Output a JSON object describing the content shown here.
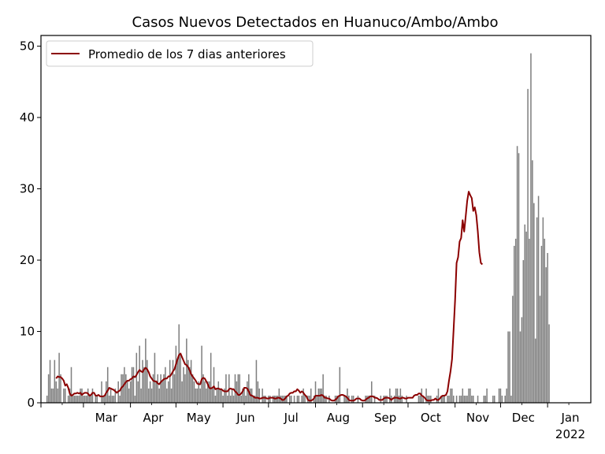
{
  "chart_data": {
    "type": "bar",
    "title": "Casos Nuevos Detectados en Huanuco/Ambo/Ambo",
    "xlabel": "",
    "ylabel": "",
    "ylim": [
      0,
      51.5
    ],
    "yticks": [
      0,
      10,
      20,
      30,
      40,
      50
    ],
    "xticks": [
      {
        "label": "Mar",
        "date": "2021-03-01"
      },
      {
        "label": "Apr",
        "date": "2021-04-01"
      },
      {
        "label": "May",
        "date": "2021-05-01"
      },
      {
        "label": "Jun",
        "date": "2021-06-01"
      },
      {
        "label": "Jul",
        "date": "2021-07-01"
      },
      {
        "label": "Aug",
        "date": "2021-08-01"
      },
      {
        "label": "Sep",
        "date": "2021-09-01"
      },
      {
        "label": "Oct",
        "date": "2021-10-01"
      },
      {
        "label": "Nov",
        "date": "2021-11-01"
      },
      {
        "label": "Dec",
        "date": "2021-12-01"
      },
      {
        "label": "Jan",
        "date": "2022-01-01",
        "sublabel": "2022"
      }
    ],
    "grid": false,
    "legend": {
      "placement": "top-left",
      "entries": [
        "Promedio de los 7 dias anteriores"
      ]
    },
    "bar_color": "#808080",
    "line_color": "#8b0000",
    "series": [
      {
        "kind": "bar",
        "start_date": "2021-02-05",
        "values": [
          1,
          4,
          6,
          2,
          2,
          6,
          3,
          2,
          7,
          4,
          0,
          2,
          2,
          0,
          1,
          2,
          5,
          1,
          1,
          1,
          1,
          1,
          2,
          2,
          1,
          1,
          1,
          2,
          1,
          1,
          2,
          0,
          1,
          1,
          0,
          0,
          3,
          1,
          1,
          3,
          5,
          1,
          2,
          1,
          1,
          2,
          0,
          3,
          1,
          4,
          4,
          5,
          4,
          3,
          2,
          3,
          5,
          5,
          1,
          7,
          3,
          8,
          2,
          6,
          5,
          9,
          6,
          2,
          3,
          2,
          4,
          7,
          3,
          4,
          2,
          4,
          3,
          4,
          5,
          2,
          3,
          6,
          2,
          6,
          4,
          8,
          6,
          11,
          7,
          3,
          5,
          4,
          9,
          6,
          5,
          6,
          4,
          3,
          2,
          2,
          3,
          2,
          8,
          4,
          3,
          2,
          3,
          3,
          7,
          2,
          5,
          1,
          2,
          3,
          2,
          2,
          1,
          2,
          4,
          1,
          4,
          1,
          2,
          1,
          4,
          3,
          4,
          4,
          1,
          2,
          2,
          1,
          3,
          4,
          2,
          2,
          1,
          1,
          6,
          3,
          2,
          0,
          2,
          1,
          1,
          0,
          1,
          1,
          0,
          1,
          1,
          1,
          1,
          2,
          1,
          1,
          1,
          1,
          1,
          0,
          1,
          1,
          0,
          1,
          0,
          1,
          1,
          0,
          1,
          2,
          1,
          0,
          1,
          1,
          2,
          0,
          1,
          3,
          1,
          2,
          2,
          2,
          4,
          1,
          1,
          0,
          1,
          0,
          0,
          0,
          1,
          1,
          1,
          5,
          0,
          0,
          1,
          1,
          2,
          1,
          0,
          1,
          1,
          0,
          0,
          1,
          0,
          0,
          0,
          0,
          1,
          1,
          1,
          1,
          3,
          0,
          1,
          0,
          0,
          0,
          1,
          0,
          1,
          1,
          1,
          0,
          2,
          1,
          0,
          1,
          2,
          2,
          1,
          2,
          1,
          0,
          0,
          1,
          0,
          0,
          0,
          0,
          0,
          0,
          0,
          1,
          1,
          2,
          1,
          0,
          2,
          1,
          1,
          1,
          0,
          0,
          0,
          1,
          2,
          0,
          1,
          1,
          1,
          0,
          1,
          1,
          2,
          2,
          1,
          0,
          1,
          0,
          1,
          1,
          2,
          1,
          1,
          1,
          2,
          2,
          1,
          1,
          0,
          0,
          1,
          0,
          0,
          0,
          1,
          1,
          2,
          0,
          0,
          0,
          1,
          1,
          0,
          0,
          2,
          2,
          1,
          0,
          1,
          2,
          10,
          10,
          1,
          15,
          22,
          23,
          36,
          35,
          10,
          12,
          20,
          25,
          24,
          44,
          23,
          49,
          34,
          28,
          9,
          26,
          29,
          15,
          22,
          26,
          23,
          19,
          21,
          11
        ]
      },
      {
        "kind": "line",
        "name": "Promedio de los 7 dias anteriores",
        "start_date": "2021-02-11",
        "values": [
          3.4,
          3.7,
          3.6,
          3.6,
          3.4,
          3.1,
          2.4,
          2.6,
          2.1,
          1.3,
          1.0,
          1.1,
          1.3,
          1.3,
          1.4,
          1.3,
          1.4,
          1.1,
          1.3,
          1.4,
          1.4,
          1.3,
          1.0,
          1.1,
          1.4,
          1.4,
          1.0,
          1.0,
          1.1,
          0.9,
          0.9,
          0.9,
          1.0,
          1.4,
          1.7,
          2.1,
          2.0,
          1.9,
          1.8,
          1.6,
          1.4,
          1.6,
          1.7,
          2.1,
          2.3,
          2.6,
          2.9,
          3.1,
          3.1,
          3.3,
          3.4,
          3.7,
          3.6,
          3.9,
          4.3,
          4.6,
          4.4,
          4.3,
          4.7,
          4.9,
          4.7,
          4.3,
          3.7,
          3.4,
          3.1,
          3.0,
          3.0,
          2.7,
          2.6,
          2.9,
          3.1,
          3.3,
          3.4,
          3.4,
          3.7,
          3.7,
          4.0,
          4.4,
          4.7,
          5.4,
          6.1,
          6.7,
          6.9,
          6.4,
          5.9,
          5.4,
          5.3,
          5.0,
          4.6,
          4.0,
          3.7,
          3.4,
          3.1,
          2.7,
          2.6,
          2.6,
          3.3,
          3.5,
          3.4,
          3.0,
          2.6,
          2.1,
          2.0,
          2.1,
          2.3,
          1.9,
          2.0,
          2.0,
          1.9,
          1.9,
          1.7,
          1.6,
          1.6,
          1.6,
          1.9,
          2.0,
          1.9,
          1.9,
          1.6,
          1.4,
          1.1,
          1.1,
          1.3,
          1.6,
          2.1,
          2.1,
          2.0,
          1.6,
          1.1,
          1.0,
          0.9,
          0.7,
          0.7,
          0.7,
          0.6,
          0.6,
          0.7,
          0.7,
          0.7,
          0.6,
          0.6,
          0.7,
          0.7,
          0.7,
          0.6,
          0.6,
          0.7,
          0.7,
          0.6,
          0.4,
          0.4,
          0.6,
          0.9,
          1.0,
          1.3,
          1.4,
          1.4,
          1.6,
          1.6,
          1.9,
          1.7,
          1.4,
          1.6,
          1.4,
          1.1,
          0.9,
          0.4,
          0.3,
          0.3,
          0.4,
          0.6,
          1.0,
          1.0,
          1.0,
          1.0,
          1.1,
          1.0,
          0.7,
          0.7,
          0.6,
          0.6,
          0.4,
          0.3,
          0.3,
          0.4,
          0.6,
          0.9,
          1.0,
          1.1,
          1.1,
          1.0,
          0.9,
          0.7,
          0.4,
          0.3,
          0.3,
          0.3,
          0.4,
          0.6,
          0.6,
          0.6,
          0.4,
          0.3,
          0.3,
          0.4,
          0.6,
          0.7,
          0.9,
          0.9,
          0.9,
          0.7,
          0.7,
          0.6,
          0.4,
          0.4,
          0.4,
          0.6,
          0.7,
          0.7,
          0.7,
          0.6,
          0.4,
          0.6,
          0.7,
          0.7,
          0.7,
          0.6,
          0.6,
          0.7,
          0.7,
          0.6,
          0.6,
          0.7,
          0.7,
          0.7,
          0.7,
          1.0,
          1.1,
          1.1,
          1.3,
          1.3,
          1.0,
          0.9,
          0.7,
          0.4,
          0.3,
          0.3,
          0.3,
          0.4,
          0.4,
          0.6,
          0.4,
          0.4,
          0.6,
          0.9,
          1.0,
          1.0,
          1.1,
          1.6,
          3.1,
          4.4,
          6.1,
          10.1,
          14.3,
          19.6,
          20.4,
          22.6,
          23.1,
          25.6,
          24.0,
          26.1,
          28.3,
          29.6,
          29.1,
          28.7,
          26.9,
          27.4,
          26.3,
          24.0,
          21.1,
          19.6,
          19.4
        ]
      }
    ]
  }
}
